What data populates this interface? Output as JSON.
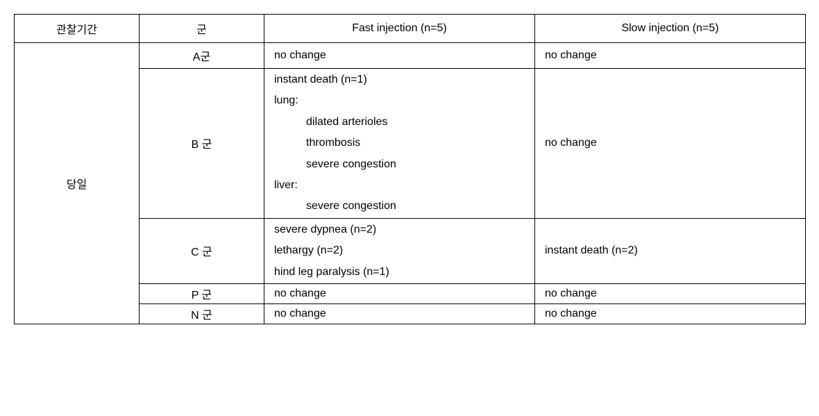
{
  "table": {
    "headers": {
      "period": "관찰기간",
      "group": "군",
      "fast": "Fast injection (n=5)",
      "slow": "Slow injection (n=5)"
    },
    "period_label": "당일",
    "rows": {
      "A": {
        "group": "A군",
        "fast_lines": [
          "no change"
        ],
        "slow_lines": [
          "no change"
        ]
      },
      "B": {
        "group": "B 군",
        "fast_lines": [
          "instant death (n=1)",
          "lung:",
          "dilated arterioles",
          "thrombosis",
          "severe congestion",
          "liver:",
          "severe congestion"
        ],
        "fast_indent": [
          "indent1",
          "indent1",
          "indent2",
          "indent2",
          "indent2",
          "indent1",
          "indent2"
        ],
        "slow_lines": [
          "no change"
        ]
      },
      "C": {
        "group": "C 군",
        "fast_lines": [
          "severe dypnea (n=2)",
          "lethargy (n=2)",
          "hind leg paralysis (n=1)"
        ],
        "slow_lines": [
          "instant death (n=2)"
        ]
      },
      "P": {
        "group": "P 군",
        "fast_lines": [
          "no change"
        ],
        "slow_lines": [
          "no change"
        ]
      },
      "N": {
        "group": "N 군",
        "fast_lines": [
          "no change"
        ],
        "slow_lines": [
          "no change"
        ]
      }
    },
    "colors": {
      "border": "#000000",
      "background": "#ffffff",
      "text": "#000000"
    },
    "font_size_pt": 12
  }
}
